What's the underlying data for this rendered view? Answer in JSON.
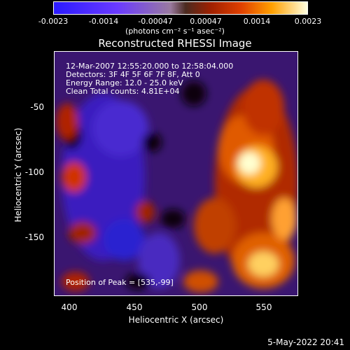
{
  "colorbar": {
    "ticks": [
      "-0.0023",
      "-0.0014",
      "-0.00047",
      "0.00047",
      "0.0014",
      "0.0023"
    ],
    "unit_label": "(photons cm⁻² s⁻¹ asec⁻²)"
  },
  "chart_data": {
    "type": "heatmap",
    "title": "Reconstructed RHESSI Image",
    "xlabel": "Heliocentric X (arcsec)",
    "ylabel": "Heliocentric Y (arcsec)",
    "xlim": [
      387,
      578
    ],
    "ylim": [
      -197,
      -12
    ],
    "xticks": [
      "400",
      "450",
      "500",
      "550"
    ],
    "yticks": [
      "-50",
      "-100",
      "-150"
    ],
    "color_range": [
      -0.0023,
      0.0023
    ],
    "peak_position": [
      535,
      -99
    ],
    "annotations": [
      "12-Mar-2007 12:55:20.000 to 12:58:04.000",
      "Detectors: 3F 4F 5F 6F 7F 8F, Att 0",
      "Energy Range: 12.0 - 25.0 keV",
      "Clean     Total counts: 4.81E+04"
    ],
    "peak_label": "Position of Peak = [535,-99]"
  },
  "footer": {
    "date": "5-May-2022 20:41"
  }
}
